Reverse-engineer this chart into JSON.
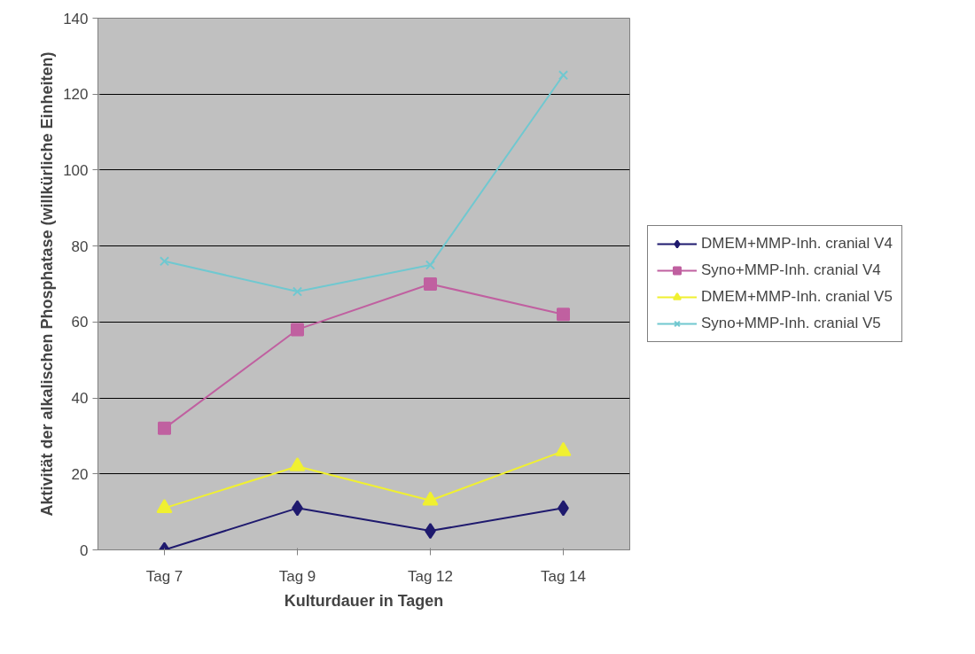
{
  "chart_data": {
    "type": "line",
    "xlabel": "Kulturdauer in Tagen",
    "ylabel": "Aktivität der alkalischen Phosphatase (willkürliche Einheiten)",
    "categories": [
      "Tag 7",
      "Tag 9",
      "Tag 12",
      "Tag 14"
    ],
    "series": [
      {
        "name": "DMEM+MMP-Inh. cranial V4",
        "color": "#1f1a6e",
        "marker": "diamond",
        "values": [
          0,
          11,
          5,
          11
        ]
      },
      {
        "name": "Syno+MMP-Inh. cranial V4",
        "color": "#c060a0",
        "marker": "square",
        "values": [
          32,
          58,
          70,
          62
        ]
      },
      {
        "name": "DMEM+MMP-Inh. cranial V5",
        "color": "#f0f030",
        "marker": "triangle",
        "values": [
          11,
          22,
          13,
          26
        ]
      },
      {
        "name": "Syno+MMP-Inh. cranial V5",
        "color": "#70c8d0",
        "marker": "cross",
        "values": [
          76,
          68,
          75,
          125
        ]
      }
    ],
    "ylim": [
      0,
      140
    ],
    "yticks": [
      0,
      20,
      40,
      60,
      80,
      100,
      120,
      140
    ],
    "grid": "y",
    "legend": "right",
    "line_style": "solid"
  }
}
